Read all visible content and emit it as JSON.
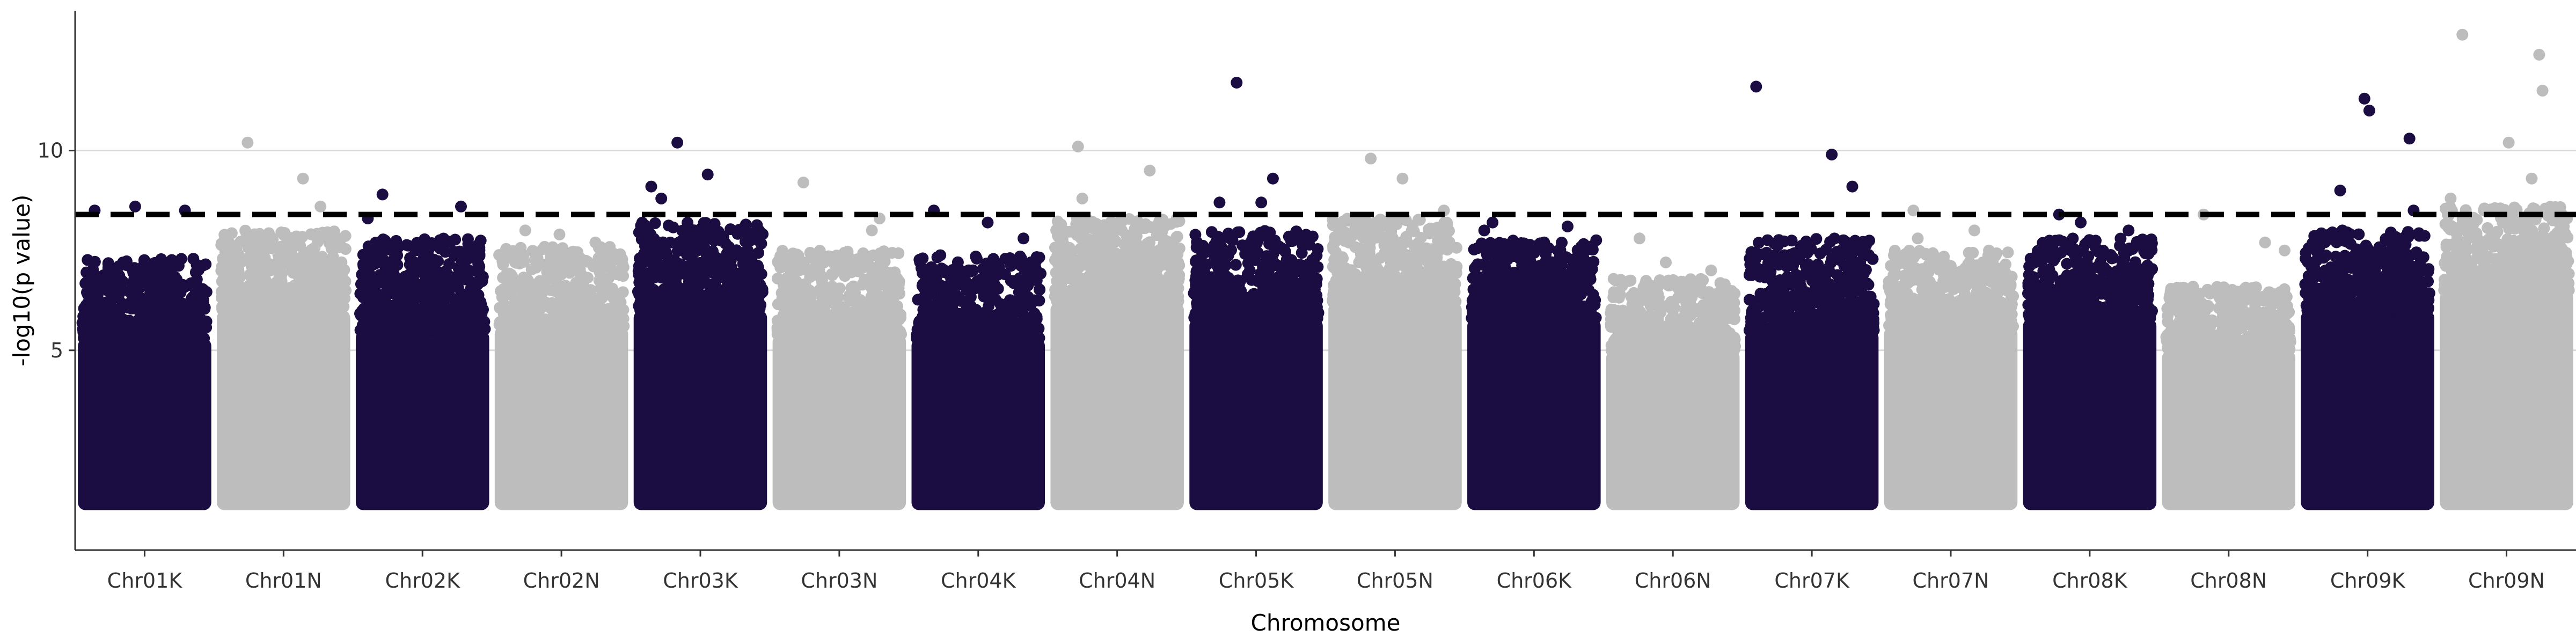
{
  "chart_data": {
    "type": "scatter",
    "subtype": "manhattan",
    "title": "",
    "xlabel": "Chromosome",
    "ylabel": "-log10(p value)",
    "ylim": [
      0,
      13.5
    ],
    "y_ticks": [
      5,
      10
    ],
    "grid": "horizontal major gridlines at y ticks",
    "threshold": 8.4,
    "colors": {
      "dark": "#1b0c41",
      "light": "#bdbdbd",
      "threshold": "#000000",
      "grid": "#d9d9d9"
    },
    "categories": [
      "Chr01K",
      "Chr01N",
      "Chr02K",
      "Chr02N",
      "Chr03K",
      "Chr03N",
      "Chr04K",
      "Chr04N",
      "Chr05K",
      "Chr05N",
      "Chr06K",
      "Chr06N",
      "Chr07K",
      "Chr07N",
      "Chr08K",
      "Chr08N",
      "Chr09K",
      "Chr09N"
    ],
    "chromosomes": [
      {
        "name": "Chr01K",
        "color": "dark",
        "base_max": 5.3,
        "scatter_max": 7.3,
        "top_hits": [
          8.5,
          8.6,
          8.5
        ]
      },
      {
        "name": "Chr01N",
        "color": "light",
        "base_max": 6.0,
        "scatter_max": 8.0,
        "top_hits": [
          10.2,
          9.3,
          8.6
        ]
      },
      {
        "name": "Chr02K",
        "color": "dark",
        "base_max": 5.5,
        "scatter_max": 7.8,
        "top_hits": [
          8.9,
          8.6,
          8.3
        ]
      },
      {
        "name": "Chr02N",
        "color": "light",
        "base_max": 5.6,
        "scatter_max": 7.6,
        "top_hits": [
          8.0,
          7.9,
          7.7
        ]
      },
      {
        "name": "Chr03K",
        "color": "dark",
        "base_max": 6.0,
        "scatter_max": 8.2,
        "top_hits": [
          10.2,
          9.4,
          9.1,
          8.8
        ]
      },
      {
        "name": "Chr03N",
        "color": "light",
        "base_max": 5.4,
        "scatter_max": 7.5,
        "top_hits": [
          9.2,
          8.3,
          8.0
        ]
      },
      {
        "name": "Chr04K",
        "color": "dark",
        "base_max": 5.3,
        "scatter_max": 7.4,
        "top_hits": [
          8.5,
          8.2,
          7.8
        ]
      },
      {
        "name": "Chr04N",
        "color": "light",
        "base_max": 6.2,
        "scatter_max": 8.3,
        "top_hits": [
          10.1,
          9.5,
          8.8
        ]
      },
      {
        "name": "Chr05K",
        "color": "dark",
        "base_max": 5.8,
        "scatter_max": 8.0,
        "top_hits": [
          11.7,
          9.3,
          8.7,
          8.7
        ]
      },
      {
        "name": "Chr05N",
        "color": "light",
        "base_max": 6.2,
        "scatter_max": 8.3,
        "top_hits": [
          9.8,
          9.3,
          8.5
        ]
      },
      {
        "name": "Chr06K",
        "color": "dark",
        "base_max": 5.8,
        "scatter_max": 7.8,
        "top_hits": [
          8.2,
          8.1,
          8.0
        ]
      },
      {
        "name": "Chr06N",
        "color": "light",
        "base_max": 5.0,
        "scatter_max": 6.8,
        "top_hits": [
          7.8,
          7.2,
          7.0
        ]
      },
      {
        "name": "Chr07K",
        "color": "dark",
        "base_max": 5.5,
        "scatter_max": 7.8,
        "top_hits": [
          11.6,
          9.9,
          9.1
        ]
      },
      {
        "name": "Chr07N",
        "color": "light",
        "base_max": 5.6,
        "scatter_max": 7.5,
        "top_hits": [
          8.5,
          8.0,
          7.8
        ]
      },
      {
        "name": "Chr08K",
        "color": "dark",
        "base_max": 5.8,
        "scatter_max": 7.8,
        "top_hits": [
          8.4,
          8.2,
          8.0
        ]
      },
      {
        "name": "Chr08N",
        "color": "light",
        "base_max": 5.0,
        "scatter_max": 6.6,
        "top_hits": [
          8.4,
          7.7,
          7.5
        ]
      },
      {
        "name": "Chr09K",
        "color": "dark",
        "base_max": 6.0,
        "scatter_max": 8.0,
        "top_hits": [
          11.3,
          11.0,
          10.3,
          9.0,
          8.5
        ]
      },
      {
        "name": "Chr09N",
        "color": "light",
        "base_max": 6.5,
        "scatter_max": 8.6,
        "top_hits": [
          12.9,
          12.4,
          11.5,
          10.2,
          9.3,
          8.8
        ]
      }
    ]
  }
}
